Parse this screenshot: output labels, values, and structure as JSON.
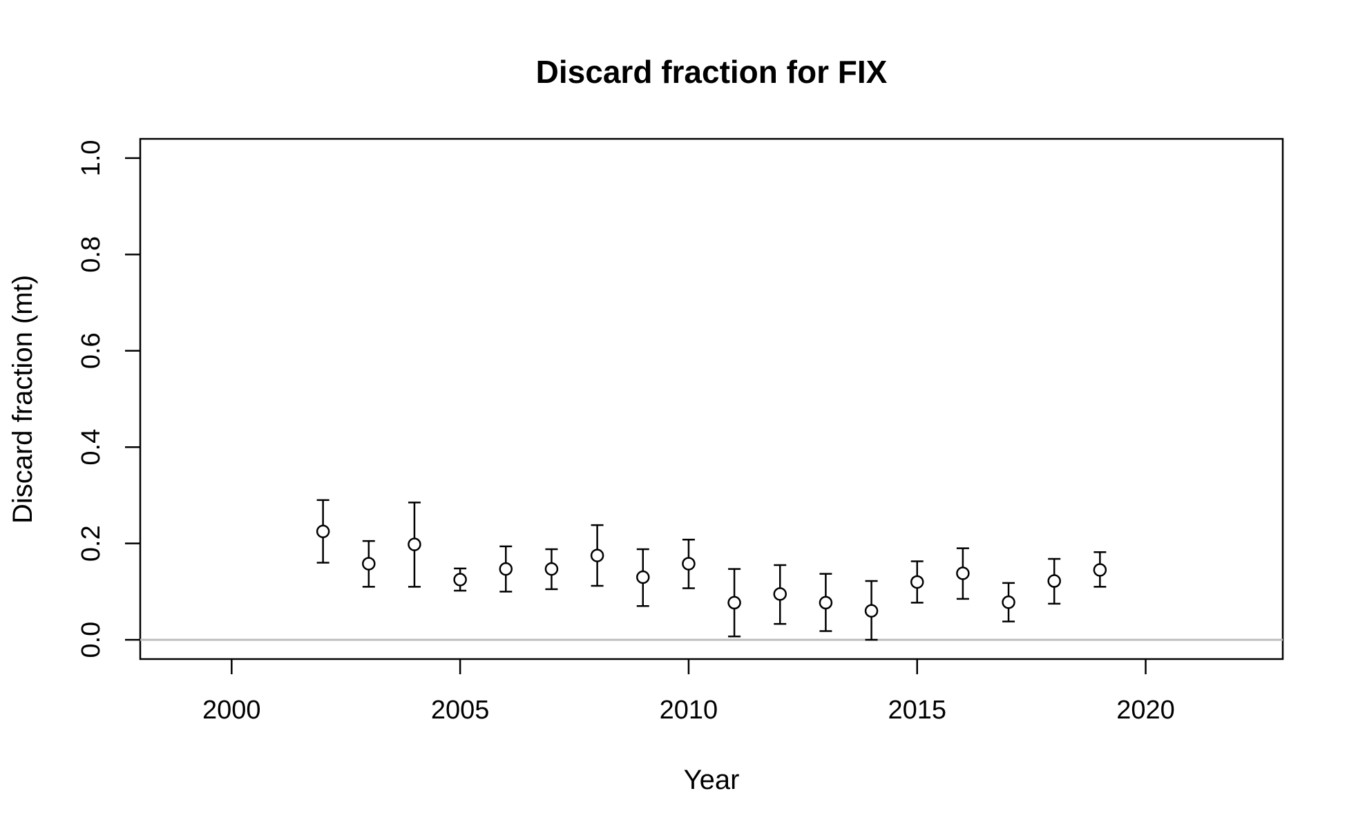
{
  "chart_data": {
    "type": "scatter",
    "title": "Discard fraction for FIX",
    "xlabel": "Year",
    "ylabel": "Discard fraction (mt)",
    "xlim": [
      1998,
      2023
    ],
    "ylim": [
      -0.04,
      1.04
    ],
    "x_ticks": [
      2000,
      2005,
      2010,
      2015,
      2020
    ],
    "y_ticks": [
      0.0,
      0.2,
      0.4,
      0.6,
      0.8,
      1.0
    ],
    "x_tick_labels": [
      "2000",
      "2005",
      "2010",
      "2015",
      "2020"
    ],
    "y_tick_labels": [
      "0.0",
      "0.2",
      "0.4",
      "0.6",
      "0.8",
      "1.0"
    ],
    "reference_line": 0.0,
    "reference_line_color": "#bebebe",
    "grid": false,
    "points": [
      {
        "x": 2002,
        "y": 0.225,
        "lower": 0.16,
        "upper": 0.29
      },
      {
        "x": 2003,
        "y": 0.158,
        "lower": 0.11,
        "upper": 0.205
      },
      {
        "x": 2004,
        "y": 0.198,
        "lower": 0.11,
        "upper": 0.285
      },
      {
        "x": 2005,
        "y": 0.125,
        "lower": 0.102,
        "upper": 0.148
      },
      {
        "x": 2006,
        "y": 0.147,
        "lower": 0.1,
        "upper": 0.194
      },
      {
        "x": 2007,
        "y": 0.147,
        "lower": 0.105,
        "upper": 0.188
      },
      {
        "x": 2008,
        "y": 0.175,
        "lower": 0.112,
        "upper": 0.238
      },
      {
        "x": 2009,
        "y": 0.13,
        "lower": 0.07,
        "upper": 0.188
      },
      {
        "x": 2010,
        "y": 0.158,
        "lower": 0.107,
        "upper": 0.208
      },
      {
        "x": 2011,
        "y": 0.077,
        "lower": 0.007,
        "upper": 0.147
      },
      {
        "x": 2012,
        "y": 0.095,
        "lower": 0.033,
        "upper": 0.155
      },
      {
        "x": 2013,
        "y": 0.077,
        "lower": 0.018,
        "upper": 0.137
      },
      {
        "x": 2014,
        "y": 0.06,
        "lower": 0.0,
        "upper": 0.122
      },
      {
        "x": 2015,
        "y": 0.12,
        "lower": 0.077,
        "upper": 0.163
      },
      {
        "x": 2016,
        "y": 0.138,
        "lower": 0.085,
        "upper": 0.19
      },
      {
        "x": 2017,
        "y": 0.078,
        "lower": 0.038,
        "upper": 0.118
      },
      {
        "x": 2018,
        "y": 0.122,
        "lower": 0.075,
        "upper": 0.168
      },
      {
        "x": 2019,
        "y": 0.145,
        "lower": 0.11,
        "upper": 0.182
      }
    ]
  }
}
